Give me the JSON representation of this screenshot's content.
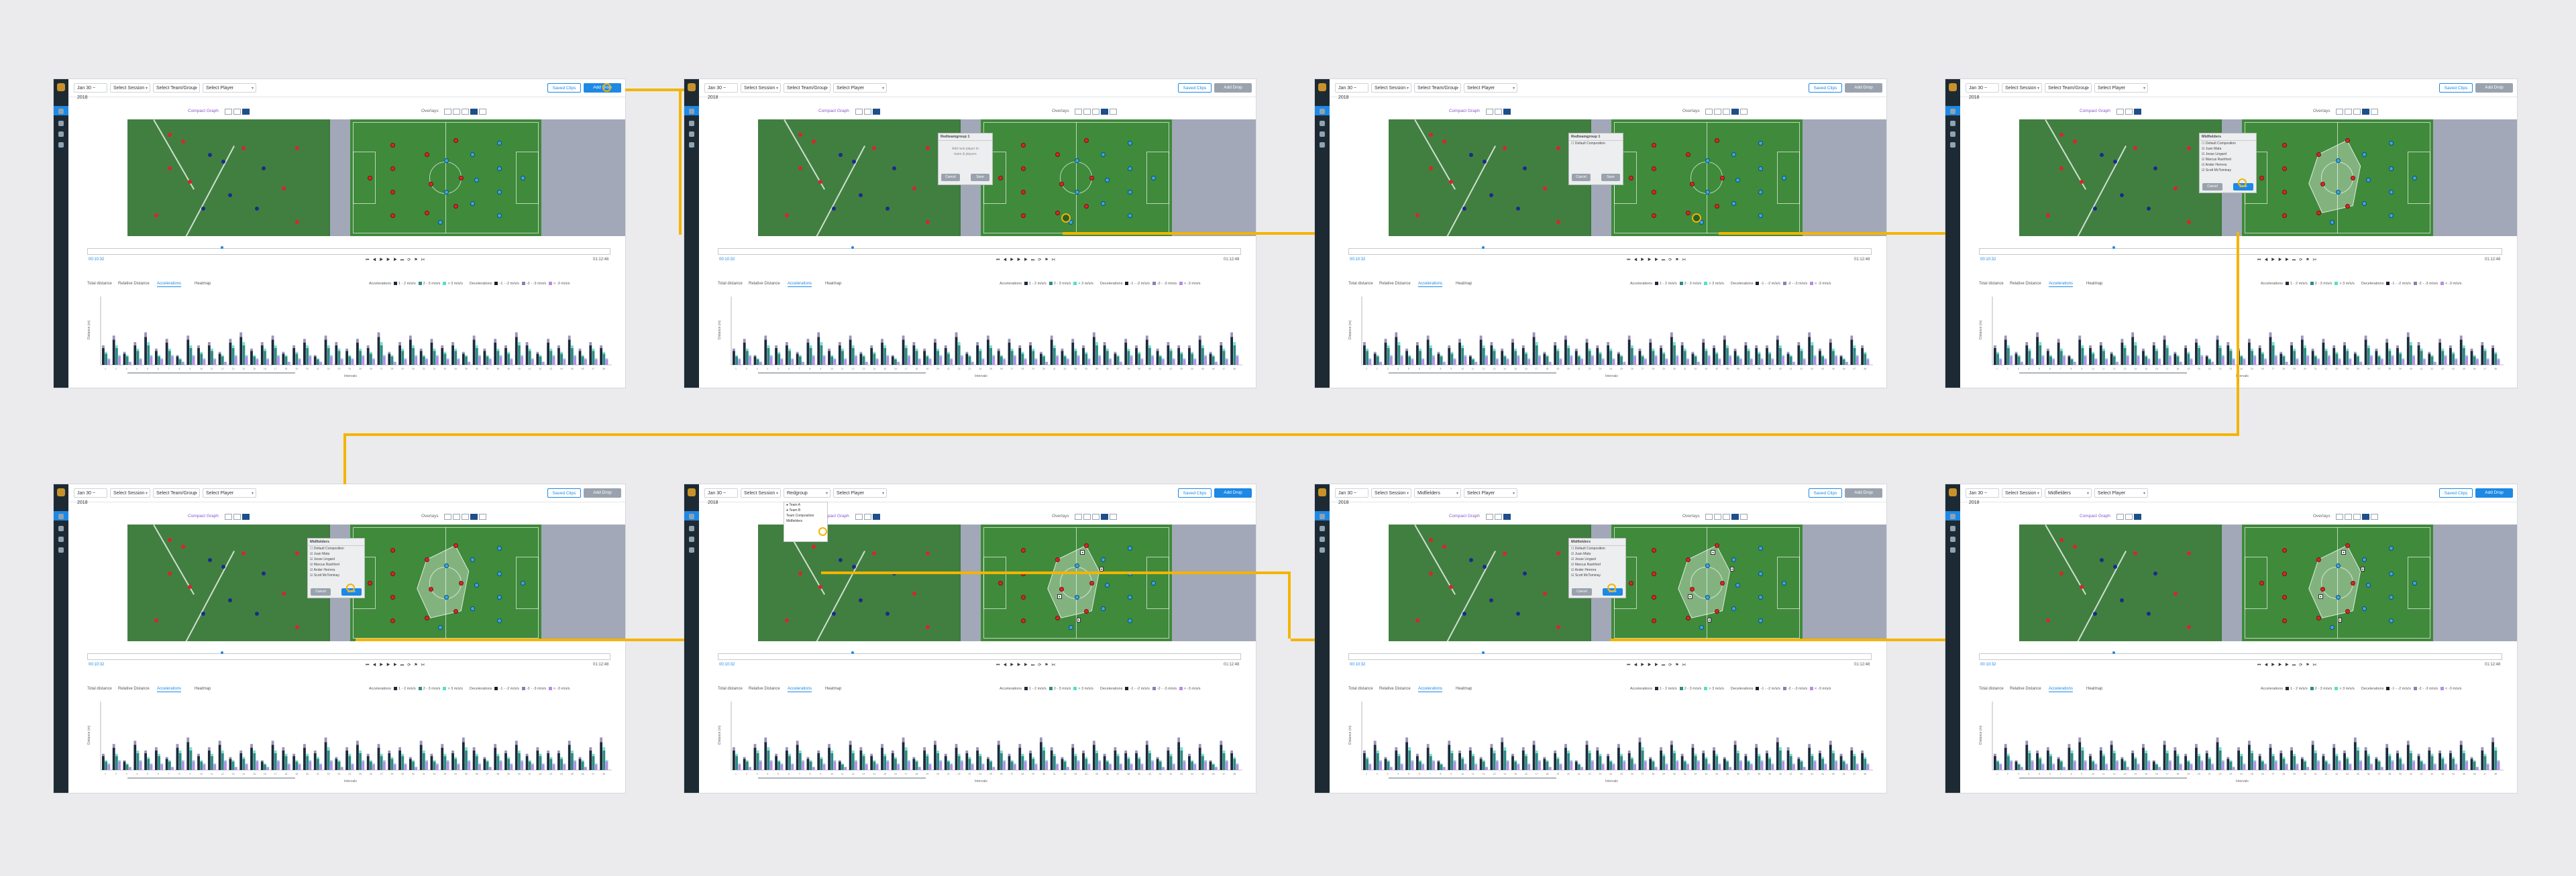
{
  "app": {
    "date": "Jan 30 ~ 2018",
    "session_select": "Select Session",
    "team_select": "Select Team/Group",
    "team_select_alt": "Redgroup",
    "team_select_alt2": "Midfielders",
    "player_select": "Select Player",
    "saved_clips_btn": "Saved Clips",
    "add_drop_btn": "Add Drop",
    "compact_graph": "Compact Graph",
    "overlays": "Overlays",
    "time_start": "00:10:32",
    "time_end": "01:12:48",
    "y_axis": "Distance (m)",
    "x_axis": "Intervals"
  },
  "tabs": [
    "Total distance",
    "Relative Distance",
    "Accelerations",
    "Heatmap"
  ],
  "active_tab": 2,
  "legend": {
    "accel_title": "Accelerations",
    "accel_items": [
      "1 - 2 m/s/s",
      "2 - 3 m/s/s",
      "> 3 m/s/s"
    ],
    "decel_title": "Decelerations",
    "decel_items": [
      "-1 - -2 m/s/s",
      "-2 - -3 m/s/s",
      "< -3 m/s/s"
    ]
  },
  "dialog": {
    "title": "Redteamgroup 1",
    "body1": "Add new player to",
    "body2": "team & players",
    "cancel": "Cancel",
    "save": "Save",
    "option_default": "Default Composition"
  },
  "player_list": {
    "title": "Midfielders",
    "items": [
      "Default Composition",
      "Juan Mata",
      "Jesse Lingard",
      "Marcus Rashford",
      "Ander Herrera",
      "Scott McTominay"
    ]
  },
  "team_dropdown": {
    "items": [
      "Team A",
      "Team B",
      "Team Composition",
      "Midfielders"
    ]
  },
  "colors": {
    "accent": "#1e88e5",
    "sidebar": "#1d2a33",
    "link": "#f4b400",
    "red_team": "#d8262a",
    "blue_team": "#3aa7e8",
    "acc_series": [
      "#1d2a3a",
      "#2e8b84",
      "#55e0c8"
    ],
    "dec_series": [
      "#14202e",
      "#8a7fb0",
      "#b68be8"
    ]
  },
  "icons": [
    "calendar-icon",
    "chevron-down-icon",
    "play-icon",
    "pause-icon",
    "skip-back-icon",
    "skip-forward-icon",
    "video-toggle-icon",
    "grid-icon"
  ],
  "chart_data": {
    "type": "bar",
    "xlabel": "Intervals",
    "ylabel": "Distance (m)",
    "categories": [
      "1",
      "2",
      "3",
      "4",
      "5",
      "6",
      "7",
      "8",
      "9",
      "10",
      "11",
      "12",
      "13",
      "14",
      "15",
      "16",
      "17",
      "18",
      "19",
      "20",
      "21",
      "22",
      "23",
      "24",
      "25",
      "26",
      "27",
      "28",
      "29",
      "30",
      "31",
      "32",
      "33",
      "34",
      "35",
      "36",
      "37",
      "38",
      "39",
      "40",
      "41",
      "42",
      "43",
      "44",
      "45",
      "46",
      "47",
      "48"
    ],
    "series": [
      {
        "name": "1 - 2 m/s/s",
        "values": [
          6,
          9,
          4,
          7,
          10,
          5,
          8,
          3,
          9,
          6,
          7,
          4,
          8,
          10,
          5,
          7,
          9,
          4,
          6,
          8,
          3,
          9,
          7,
          5,
          8,
          6,
          10,
          4,
          7,
          9,
          5,
          8,
          6,
          7,
          4,
          9,
          5,
          8,
          6,
          10,
          7,
          4,
          8,
          6,
          9,
          5,
          7,
          6
        ]
      },
      {
        "name": "> 3 m/s/s",
        "values": [
          4,
          6,
          3,
          5,
          7,
          3,
          5,
          2,
          6,
          4,
          5,
          3,
          6,
          7,
          3,
          5,
          6,
          3,
          4,
          6,
          2,
          6,
          5,
          3,
          5,
          4,
          7,
          3,
          5,
          6,
          3,
          5,
          4,
          5,
          3,
          6,
          3,
          5,
          4,
          7,
          5,
          3,
          5,
          4,
          6,
          3,
          5,
          4
        ]
      },
      {
        "name": "< -3 m/s/s",
        "values": [
          2,
          3,
          1,
          2,
          3,
          2,
          3,
          1,
          3,
          2,
          2,
          1,
          3,
          3,
          2,
          2,
          3,
          1,
          2,
          3,
          1,
          3,
          2,
          2,
          3,
          2,
          3,
          1,
          2,
          3,
          2,
          3,
          2,
          2,
          1,
          3,
          2,
          3,
          2,
          3,
          2,
          1,
          3,
          2,
          3,
          2,
          2,
          2
        ]
      }
    ]
  }
}
